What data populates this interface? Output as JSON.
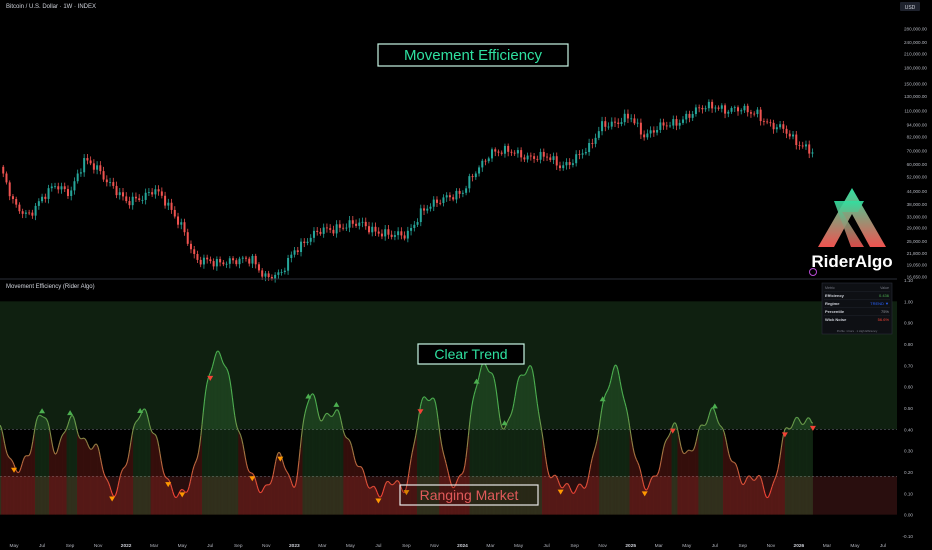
{
  "colors": {
    "background": "#000000",
    "up": "#26a69a",
    "down": "#ef5350",
    "efficiency_high": "#4caf50",
    "efficiency_low": "#f44336",
    "trend_zone": "#1b3a1e",
    "range_zone": "#3a1414",
    "annotation": "#2fe0a0"
  },
  "header": {
    "symbol_title": "Bitcoin / U.S. Dollar · 1W · INDEX",
    "currency": "USD"
  },
  "annotations": {
    "main_title": "Movement Efficiency",
    "trend_label": "Clear Trend",
    "range_label": "Ranging Market"
  },
  "brand": {
    "name": "RiderAlgo",
    "logo_icon": "rider-algo-logo-icon"
  },
  "indicator": {
    "title": "Movement Efficiency (Rider Algo)"
  },
  "table": {
    "headers": [
      "Metric",
      "Value"
    ],
    "rows": [
      {
        "metric": "Efficiency",
        "value": "0.436",
        "color": "#4caf50"
      },
      {
        "metric": "Regime",
        "value": "TREND ▼",
        "color": "#2962ff"
      },
      {
        "metric": "Percentile",
        "value": "75%",
        "color": "#9598a1"
      },
      {
        "metric": "Wick Noise",
        "value": "56.6%",
        "color": "#f44336"
      }
    ],
    "footer": "Profile: 1 bars · 1 High Efficiency"
  },
  "time_axis": {
    "labels": [
      "May",
      "Jul",
      "Sep",
      "Nov",
      "2022",
      "Mar",
      "May",
      "Jul",
      "Sep",
      "Nov",
      "2023",
      "Mar",
      "May",
      "Jul",
      "Sep",
      "Nov",
      "2024",
      "Mar",
      "May",
      "Jul",
      "Sep",
      "Nov",
      "2025",
      "Mar",
      "May",
      "Jul",
      "Sep",
      "Nov",
      "2026",
      "Mar",
      "May",
      "Jul"
    ]
  },
  "chart_data": [
    {
      "type": "candlestick",
      "title": "Bitcoin / U.S. Dollar · 1W · INDEX",
      "y_scale": "log",
      "y_tick_labels": [
        "280,000.00",
        "240,000.00",
        "210,000.00",
        "180,000.00",
        "150,000.00",
        "130,000.00",
        "110,000.00",
        "94,000.00",
        "82,000.00",
        "70,000.00",
        "60,000.00",
        "52,000.00",
        "44,000.00",
        "38,000.00",
        "33,000.00",
        "29,000.00",
        "25,000.00",
        "21,800.00",
        "19,050.00",
        "16,650.00"
      ],
      "y_ticks": [
        280000,
        240000,
        210000,
        180000,
        150000,
        130000,
        110000,
        94000,
        82000,
        70000,
        60000,
        52000,
        44000,
        38000,
        33000,
        29000,
        25000,
        21800,
        19050,
        16650
      ],
      "ylim": [
        16000,
        330000
      ],
      "x_range": [
        "2021-04",
        "2026-08"
      ],
      "close_path": [
        [
          "2021-04",
          58000
        ],
        [
          "2021-05",
          37000
        ],
        [
          "2021-06",
          34000
        ],
        [
          "2021-07",
          40000
        ],
        [
          "2021-08",
          47000
        ],
        [
          "2021-09",
          44000
        ],
        [
          "2021-10",
          61000
        ],
        [
          "2021-11",
          57000
        ],
        [
          "2021-12",
          47000
        ],
        [
          "2022-01",
          38000
        ],
        [
          "2022-03",
          45000
        ],
        [
          "2022-05",
          30000
        ],
        [
          "2022-06",
          19500
        ],
        [
          "2022-08",
          20000
        ],
        [
          "2022-09",
          19500
        ],
        [
          "2022-10",
          20500
        ],
        [
          "2022-11",
          16500
        ],
        [
          "2022-12",
          16600
        ],
        [
          "2023-01",
          23000
        ],
        [
          "2023-03",
          28000
        ],
        [
          "2023-04",
          29500
        ],
        [
          "2023-06",
          30000
        ],
        [
          "2023-08",
          26000
        ],
        [
          "2023-09",
          27000
        ],
        [
          "2023-10",
          34500
        ],
        [
          "2023-11",
          37500
        ],
        [
          "2023-12",
          42500
        ],
        [
          "2024-01",
          43000
        ],
        [
          "2024-03",
          70000
        ],
        [
          "2024-05",
          67000
        ],
        [
          "2024-07",
          64000
        ],
        [
          "2024-08",
          59000
        ],
        [
          "2024-09",
          63500
        ],
        [
          "2024-10",
          70000
        ],
        [
          "2024-11",
          97000
        ],
        [
          "2024-12",
          94000
        ],
        [
          "2025-01",
          102000
        ],
        [
          "2025-02",
          84000
        ],
        [
          "2025-04",
          95000
        ],
        [
          "2025-05",
          104000
        ],
        [
          "2025-07",
          118000
        ],
        [
          "2025-08",
          110000
        ],
        [
          "2025-10",
          109000
        ],
        [
          "2025-11",
          91000
        ],
        [
          "2025-12",
          88000
        ],
        [
          "2026-02",
          67000
        ]
      ],
      "last_price": 67000
    },
    {
      "type": "area",
      "title": "Movement Efficiency (Rider Algo)",
      "ylim": [
        -0.1,
        1.1
      ],
      "y_ticks": [
        1.1,
        1.0,
        0.9,
        0.8,
        0.7,
        0.6,
        0.5,
        0.4,
        0.3,
        0.2,
        0.1,
        0.0,
        -0.1
      ],
      "y_tick_labels": [
        "1.10",
        "1.00",
        "0.90",
        "0.80",
        "0.70",
        "0.60",
        "0.50",
        "0.40",
        "0.30",
        "0.20",
        "0.10",
        "0.00",
        "-0.10"
      ],
      "threshold_trend": 0.4,
      "threshold_range": 0.18,
      "x_range": [
        "2021-04",
        "2026-08"
      ],
      "series": [
        {
          "values": [
            [
              "2021-04",
              0.4
            ],
            [
              "2021-05",
              0.22
            ],
            [
              "2021-06",
              0.28
            ],
            [
              "2021-07",
              0.48
            ],
            [
              "2021-08",
              0.3
            ],
            [
              "2021-09",
              0.45
            ],
            [
              "2021-10",
              0.34
            ],
            [
              "2021-11",
              0.3
            ],
            [
              "2021-12",
              0.1
            ],
            [
              "2022-01",
              0.25
            ],
            [
              "2022-02",
              0.48
            ],
            [
              "2022-03",
              0.38
            ],
            [
              "2022-04",
              0.15
            ],
            [
              "2022-05",
              0.1
            ],
            [
              "2022-06",
              0.25
            ],
            [
              "2022-07",
              0.68
            ],
            [
              "2022-08",
              0.72
            ],
            [
              "2022-09",
              0.4
            ],
            [
              "2022-10",
              0.18
            ],
            [
              "2022-11",
              0.12
            ],
            [
              "2022-12",
              0.28
            ],
            [
              "2023-01",
              0.14
            ],
            [
              "2023-02",
              0.55
            ],
            [
              "2023-03",
              0.45
            ],
            [
              "2023-04",
              0.48
            ],
            [
              "2023-05",
              0.32
            ],
            [
              "2023-06",
              0.18
            ],
            [
              "2023-07",
              0.1
            ],
            [
              "2023-08",
              0.16
            ],
            [
              "2023-09",
              0.14
            ],
            [
              "2023-10",
              0.5
            ],
            [
              "2023-11",
              0.52
            ],
            [
              "2023-12",
              0.18
            ],
            [
              "2024-01",
              0.2
            ],
            [
              "2024-02",
              0.62
            ],
            [
              "2024-03",
              0.68
            ],
            [
              "2024-04",
              0.4
            ],
            [
              "2024-05",
              0.62
            ],
            [
              "2024-06",
              0.66
            ],
            [
              "2024-07",
              0.24
            ],
            [
              "2024-08",
              0.15
            ],
            [
              "2024-09",
              0.12
            ],
            [
              "2024-10",
              0.18
            ],
            [
              "2024-11",
              0.5
            ],
            [
              "2024-12",
              0.68
            ],
            [
              "2025-01",
              0.38
            ],
            [
              "2025-02",
              0.14
            ],
            [
              "2025-03",
              0.22
            ],
            [
              "2025-04",
              0.42
            ],
            [
              "2025-05",
              0.28
            ],
            [
              "2025-06",
              0.4
            ],
            [
              "2025-07",
              0.48
            ],
            [
              "2025-08",
              0.3
            ],
            [
              "2025-09",
              0.16
            ],
            [
              "2025-10",
              0.18
            ],
            [
              "2025-11",
              0.1
            ],
            [
              "2025-12",
              0.38
            ],
            [
              "2026-01",
              0.44
            ],
            [
              "2026-02",
              0.43
            ]
          ]
        }
      ],
      "signals": [
        {
          "x": "2021-05",
          "dir": "down"
        },
        {
          "x": "2021-07",
          "dir": "up"
        },
        {
          "x": "2021-09",
          "dir": "up"
        },
        {
          "x": "2021-12",
          "dir": "down"
        },
        {
          "x": "2022-02",
          "dir": "up"
        },
        {
          "x": "2022-04",
          "dir": "down"
        },
        {
          "x": "2022-05",
          "dir": "down"
        },
        {
          "x": "2022-07",
          "dir": "down"
        },
        {
          "x": "2022-10",
          "dir": "down"
        },
        {
          "x": "2022-12",
          "dir": "down"
        },
        {
          "x": "2023-02",
          "dir": "up"
        },
        {
          "x": "2023-04",
          "dir": "up"
        },
        {
          "x": "2023-07",
          "dir": "down"
        },
        {
          "x": "2023-09",
          "dir": "down"
        },
        {
          "x": "2023-10",
          "dir": "down"
        },
        {
          "x": "2024-02",
          "dir": "up"
        },
        {
          "x": "2024-04",
          "dir": "up"
        },
        {
          "x": "2024-08",
          "dir": "down"
        },
        {
          "x": "2024-11",
          "dir": "up"
        },
        {
          "x": "2025-02",
          "dir": "down"
        },
        {
          "x": "2025-04",
          "dir": "down"
        },
        {
          "x": "2025-07",
          "dir": "up"
        },
        {
          "x": "2025-12",
          "dir": "down"
        },
        {
          "x": "2026-02",
          "dir": "down"
        }
      ]
    }
  ]
}
